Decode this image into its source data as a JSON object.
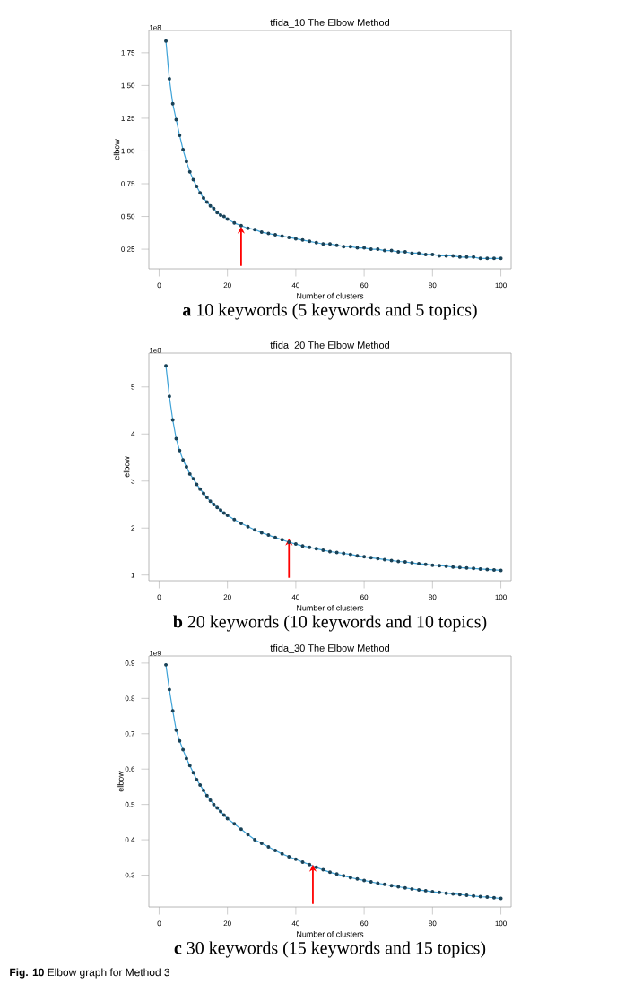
{
  "chart_data": [
    {
      "type": "line",
      "title": "tfida_10 The Elbow Method",
      "xlabel": "Number of clusters",
      "ylabel": "elbow",
      "annotations": [
        "1e8",
        "**a** 10 keywords (5 keywords and 5 topics)"
      ],
      "marker": "circle",
      "line_style": "solid",
      "xlim": [
        -3,
        103
      ],
      "xticks": [
        0,
        20,
        40,
        60,
        80,
        100
      ],
      "ylim": [
        0.1,
        1.92
      ],
      "yticks": [
        0.25,
        {
          "value": 0.5,
          "label": "0.50"
        },
        0.75,
        {
          "value": 1,
          "label": "1.00"
        },
        1.25,
        {
          "value": 1.5,
          "label": "1.50"
        },
        1.75
      ],
      "series": [
        {
          "color": "#3fa3d8",
          "x": [
            2,
            3,
            4,
            5,
            6,
            7,
            8,
            9,
            10,
            11,
            12,
            13,
            14,
            15,
            16,
            17,
            18,
            19,
            20,
            22,
            24,
            26,
            28,
            30,
            32,
            34,
            36,
            38,
            40,
            42,
            44,
            46,
            48,
            50,
            52,
            54,
            56,
            58,
            60,
            62,
            64,
            66,
            68,
            70,
            72,
            74,
            76,
            78,
            80,
            82,
            84,
            86,
            88,
            90,
            92,
            94,
            96,
            98,
            100
          ],
          "values": [
            1.84,
            1.55,
            1.36,
            1.24,
            1.12,
            1.01,
            0.92,
            0.84,
            0.78,
            0.73,
            0.68,
            0.64,
            0.61,
            0.58,
            0.56,
            0.53,
            0.51,
            0.5,
            0.48,
            0.45,
            0.43,
            0.41,
            0.4,
            0.38,
            0.37,
            0.36,
            0.35,
            0.34,
            0.33,
            0.32,
            0.31,
            0.3,
            0.29,
            0.29,
            0.28,
            0.27,
            0.27,
            0.26,
            0.26,
            0.25,
            0.25,
            0.24,
            0.24,
            0.23,
            0.23,
            0.22,
            0.22,
            0.21,
            0.21,
            0.2,
            0.2,
            0.2,
            0.19,
            0.19,
            0.19,
            0.18,
            0.18,
            0.18,
            0.18
          ]
        }
      ]
    },
    {
      "type": "line",
      "title": "tfida_20 The Elbow Method",
      "xlabel": "Number of clusters",
      "ylabel": "elbow",
      "annotations": [
        "1e8",
        "**b** 20 keywords (10 keywords and 10 topics)"
      ],
      "marker": "circle",
      "line_style": "solid",
      "xlim": [
        -3,
        103
      ],
      "xticks": [
        0,
        20,
        40,
        60,
        80,
        100
      ],
      "ylim": [
        0.88,
        5.72
      ],
      "yticks": [
        1,
        2,
        3,
        4,
        5
      ],
      "series": [
        {
          "color": "#3fa3d8",
          "x": [
            2,
            3,
            4,
            5,
            6,
            7,
            8,
            9,
            10,
            11,
            12,
            13,
            14,
            15,
            16,
            17,
            18,
            19,
            20,
            22,
            24,
            26,
            28,
            30,
            32,
            34,
            36,
            38,
            40,
            42,
            44,
            46,
            48,
            50,
            52,
            54,
            56,
            58,
            60,
            62,
            64,
            66,
            68,
            70,
            72,
            74,
            76,
            78,
            80,
            82,
            84,
            86,
            88,
            90,
            92,
            94,
            96,
            98,
            100
          ],
          "values": [
            5.45,
            4.8,
            4.3,
            3.9,
            3.65,
            3.45,
            3.3,
            3.15,
            3.05,
            2.93,
            2.83,
            2.74,
            2.65,
            2.57,
            2.5,
            2.44,
            2.38,
            2.32,
            2.27,
            2.18,
            2.1,
            2.03,
            1.96,
            1.9,
            1.85,
            1.8,
            1.75,
            1.7,
            1.66,
            1.62,
            1.59,
            1.56,
            1.53,
            1.5,
            1.48,
            1.46,
            1.44,
            1.41,
            1.39,
            1.37,
            1.35,
            1.33,
            1.31,
            1.29,
            1.28,
            1.26,
            1.24,
            1.23,
            1.21,
            1.2,
            1.19,
            1.17,
            1.16,
            1.15,
            1.14,
            1.13,
            1.12,
            1.11,
            1.1
          ]
        }
      ]
    },
    {
      "type": "line",
      "title": "tfida_30 The Elbow Method",
      "xlabel": "Number of clusters",
      "ylabel": "elbow",
      "annotations": [
        "1e9",
        "**c** 30 keywords (15 keywords and 15 topics)",
        "**Fig. 10** Elbow graph for Method 3"
      ],
      "marker": "circle",
      "line_style": "solid",
      "xlim": [
        -3,
        103
      ],
      "xticks": [
        0,
        20,
        40,
        60,
        80,
        100
      ],
      "ylim": [
        0.21,
        0.92
      ],
      "yticks": [
        0.3,
        0.4,
        0.5,
        0.6,
        0.7,
        0.8,
        0.9
      ],
      "series": [
        {
          "color": "#3fa3d8",
          "x": [
            2,
            3,
            4,
            5,
            6,
            7,
            8,
            9,
            10,
            11,
            12,
            13,
            14,
            15,
            16,
            17,
            18,
            19,
            20,
            22,
            24,
            26,
            28,
            30,
            32,
            34,
            36,
            38,
            40,
            42,
            44,
            46,
            48,
            50,
            52,
            54,
            56,
            58,
            60,
            62,
            64,
            66,
            68,
            70,
            72,
            74,
            76,
            78,
            80,
            82,
            84,
            86,
            88,
            90,
            92,
            94,
            96,
            98,
            100
          ],
          "values": [
            0.895,
            0.825,
            0.765,
            0.71,
            0.68,
            0.655,
            0.63,
            0.61,
            0.59,
            0.57,
            0.555,
            0.54,
            0.525,
            0.512,
            0.5,
            0.49,
            0.48,
            0.47,
            0.46,
            0.445,
            0.43,
            0.415,
            0.4,
            0.39,
            0.38,
            0.37,
            0.36,
            0.352,
            0.345,
            0.337,
            0.33,
            0.322,
            0.315,
            0.308,
            0.303,
            0.298,
            0.293,
            0.289,
            0.285,
            0.281,
            0.277,
            0.274,
            0.27,
            0.267,
            0.264,
            0.261,
            0.258,
            0.256,
            0.253,
            0.251,
            0.249,
            0.247,
            0.245,
            0.243,
            0.241,
            0.239,
            0.238,
            0.236,
            0.234
          ]
        }
      ]
    }
  ]
}
